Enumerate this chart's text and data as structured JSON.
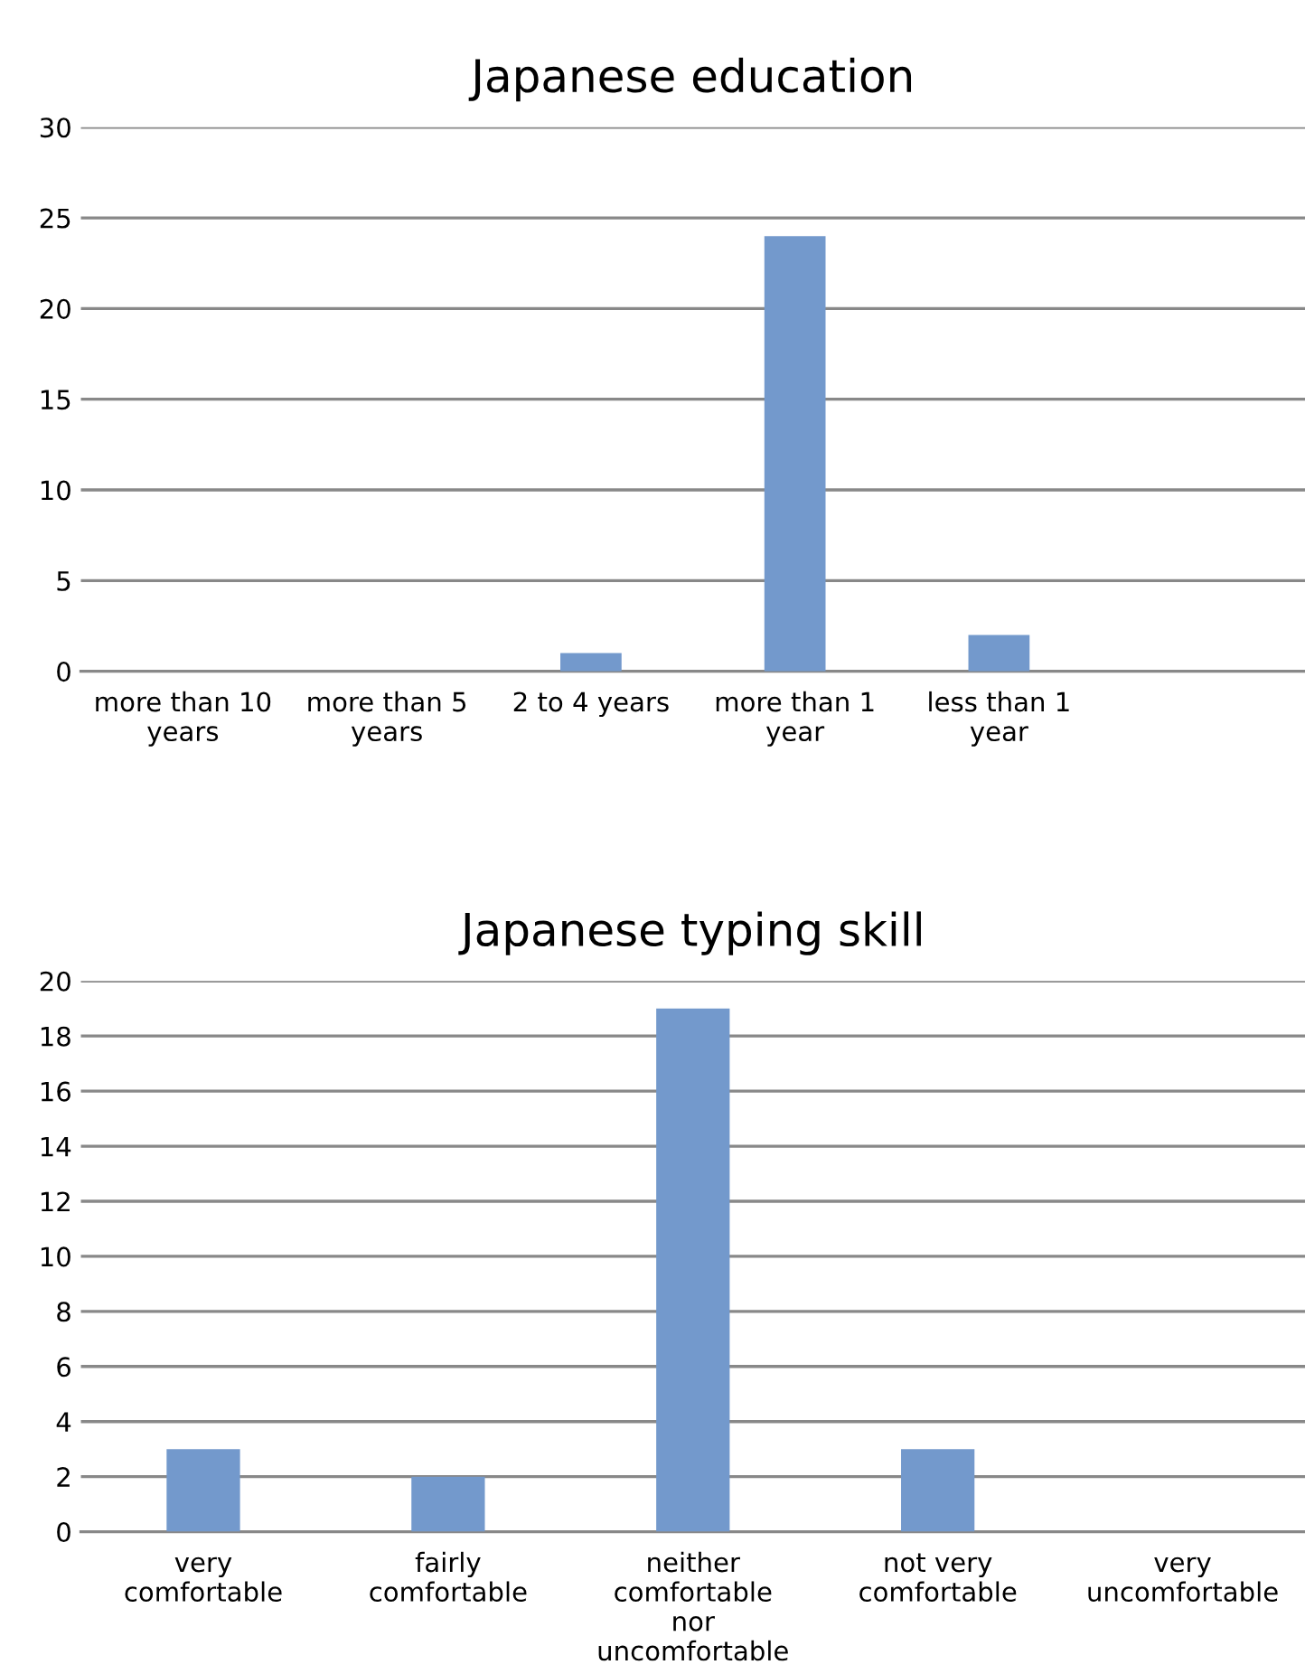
{
  "chart_data": [
    {
      "type": "bar",
      "title": "Japanese education",
      "categories": [
        "more than 10 years",
        "more than 5 years",
        "2 to 4 years",
        "more than 1 year",
        "less than 1 year",
        null
      ],
      "values": [
        0,
        0,
        1,
        24,
        2,
        0
      ],
      "color": "#7399cc",
      "ylim": [
        0,
        30
      ],
      "yticks": [
        0,
        5,
        10,
        15,
        20,
        25,
        30
      ],
      "grid": "y",
      "legend": false
    },
    {
      "type": "bar",
      "title": "Japanese typing skill",
      "categories": [
        "very comfortable",
        "fairly comfortable",
        "neither comfortable nor uncomfortable",
        "not very comfortable",
        "very uncomfortable"
      ],
      "values": [
        3,
        2,
        19,
        3,
        0
      ],
      "color": "#7399cc",
      "ylim": [
        0,
        20
      ],
      "yticks": [
        0,
        2,
        4,
        6,
        8,
        10,
        12,
        14,
        16,
        18,
        20
      ],
      "grid": "y",
      "legend": false
    }
  ]
}
